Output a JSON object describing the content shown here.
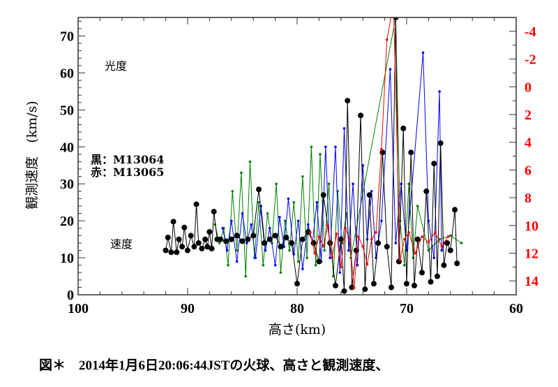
{
  "chart_data": {
    "type": "line",
    "xlabel": "高さ(km)",
    "ylabel": "観測速度　(km/s)",
    "xlim": [
      100,
      60
    ],
    "ylim": [
      0,
      75
    ],
    "y2lim": [
      -5,
      15
    ],
    "y2_inverted": true,
    "y2_color": "#ff0000",
    "x_ticks": [
      "100",
      "90",
      "80",
      "70",
      "60"
    ],
    "y_ticks": [
      "0",
      "10",
      "20",
      "30",
      "40",
      "50",
      "60",
      "70"
    ],
    "y2_ticks": [
      "-4",
      "-2",
      "0",
      "2",
      "4",
      "6",
      "8",
      "10",
      "12",
      "14"
    ],
    "grid": false,
    "annotations": {
      "brightness": "光度",
      "velocity": "速度",
      "legend_black": "黒：M13064",
      "legend_red": "赤：M13065"
    },
    "series": [
      {
        "color": "#008000",
        "axis": "left",
        "marker": "small",
        "x": [
          87.5,
          87.1,
          86.7,
          86.3,
          85.9,
          85.5,
          85.1,
          84.7,
          84.3,
          83.9,
          83.5,
          83.1,
          82.7,
          82.3,
          81.9,
          81.5,
          81.1,
          80.7,
          80.3,
          79.9,
          79.5,
          79.1,
          78.7,
          78.3,
          77.9,
          77.5,
          77.1,
          76.7,
          76.3,
          75.9,
          75.5,
          75.1,
          71,
          70.6,
          70.2,
          69.8,
          69.4,
          69,
          68,
          67,
          66,
          65
        ],
        "y": [
          19,
          14,
          18,
          8,
          28,
          12,
          33,
          5,
          36,
          10,
          25,
          8,
          22,
          14,
          30,
          6,
          20,
          12,
          25,
          9,
          32,
          10,
          40,
          8,
          38,
          12,
          30,
          5,
          28,
          14,
          22,
          10,
          75,
          20,
          8,
          30,
          10,
          24,
          12,
          15,
          16,
          14
        ]
      },
      {
        "color": "#0000ff",
        "axis": "left",
        "marker": "small",
        "x": [
          86.8,
          86.4,
          86,
          85.5,
          85,
          84.6,
          84.2,
          83.8,
          83.3,
          82.9,
          82.5,
          82,
          81.6,
          81.2,
          80.8,
          80.3,
          79.9,
          79.5,
          79,
          78.6,
          78.2,
          77.8,
          77.4,
          77,
          76.5,
          76.1,
          75.7,
          75.3,
          74.9,
          74.5,
          74,
          73.6,
          73.2,
          72.8,
          72.3,
          71.5,
          71,
          70.5,
          70,
          68.5,
          68,
          67.5,
          67,
          66.8,
          66.6
        ],
        "y": [
          18,
          12,
          20,
          9,
          22,
          14,
          19,
          10,
          24,
          12,
          18,
          8,
          21,
          13,
          26,
          11,
          20,
          7,
          19,
          14,
          25,
          9,
          40,
          10,
          40,
          6,
          45,
          12,
          30,
          8,
          35,
          15,
          28,
          10,
          20,
          61,
          14,
          30,
          12,
          65.5,
          20,
          10,
          55,
          12,
          14
        ]
      },
      {
        "color": "#000000",
        "axis": "left",
        "marker": "large",
        "x": [
          92,
          91.8,
          91.5,
          91.3,
          91,
          90.8,
          90.5,
          90.3,
          90,
          89.7,
          89.4,
          89.2,
          89,
          88.7,
          88.4,
          88.2,
          88,
          87.8,
          87.6,
          87.3,
          87,
          86.5,
          86,
          85.5,
          85,
          84.5,
          84,
          83.5,
          83,
          82.5,
          82,
          81.5,
          81,
          80.5,
          80,
          79.5,
          79,
          78.5,
          78,
          77.6,
          77,
          76.5,
          76,
          75.7,
          75.4,
          75,
          74.6,
          74.2,
          73.8,
          73.4,
          73,
          72.6,
          72.2,
          71.8,
          71.4,
          71,
          70.7,
          70.3,
          70,
          69.6,
          69.3,
          69,
          68.6,
          68.2,
          67.8,
          67.5,
          67.2,
          66.9,
          66.6,
          66.3,
          66,
          65.6,
          65.4
        ],
        "y": [
          12,
          15.5,
          11.5,
          19.8,
          11.5,
          15,
          13,
          18.2,
          12,
          16,
          13,
          24.5,
          14,
          12.5,
          15,
          13,
          17,
          12.5,
          22.5,
          15,
          15,
          14.5,
          15,
          16,
          14.5,
          15,
          16,
          28.5,
          14,
          15,
          16,
          13,
          15.5,
          14,
          3,
          15,
          17,
          14,
          9,
          27,
          14,
          2.5,
          15,
          1,
          52.5,
          2,
          12,
          48.5,
          1.5,
          27,
          3,
          14,
          38.5,
          13,
          2,
          75,
          9,
          45,
          3,
          38.5,
          2.5,
          15,
          6,
          28,
          3.5,
          35.5,
          5,
          41,
          8,
          14,
          12,
          23,
          8.5
        ]
      },
      {
        "color": "#ff0000",
        "axis": "right",
        "marker": "small",
        "x": [
          78.8,
          78.4,
          78,
          77.6,
          77.2,
          76.8,
          76.4,
          76,
          75.6,
          75.2,
          74.8,
          74.4,
          74,
          73.6,
          73.2,
          72.8,
          72.3,
          71.8,
          71.2,
          70.6,
          70.2,
          69.8,
          69.2,
          68.6,
          68,
          67.4,
          66.8,
          66.2
        ],
        "y": [
          10.5,
          12,
          10.8,
          11.5,
          10,
          12.3,
          10.6,
          13,
          10.2,
          11,
          14.5,
          10.8,
          11.5,
          12.8,
          11,
          10.5,
          4.5,
          -3.4,
          -6,
          12.5,
          11,
          10.5,
          12,
          10.8,
          11.2,
          10.5,
          11.5,
          10.8
        ]
      }
    ]
  },
  "caption": "図＊　2014年1月6日20:06:44JSTの火球、高さと観測速度、"
}
